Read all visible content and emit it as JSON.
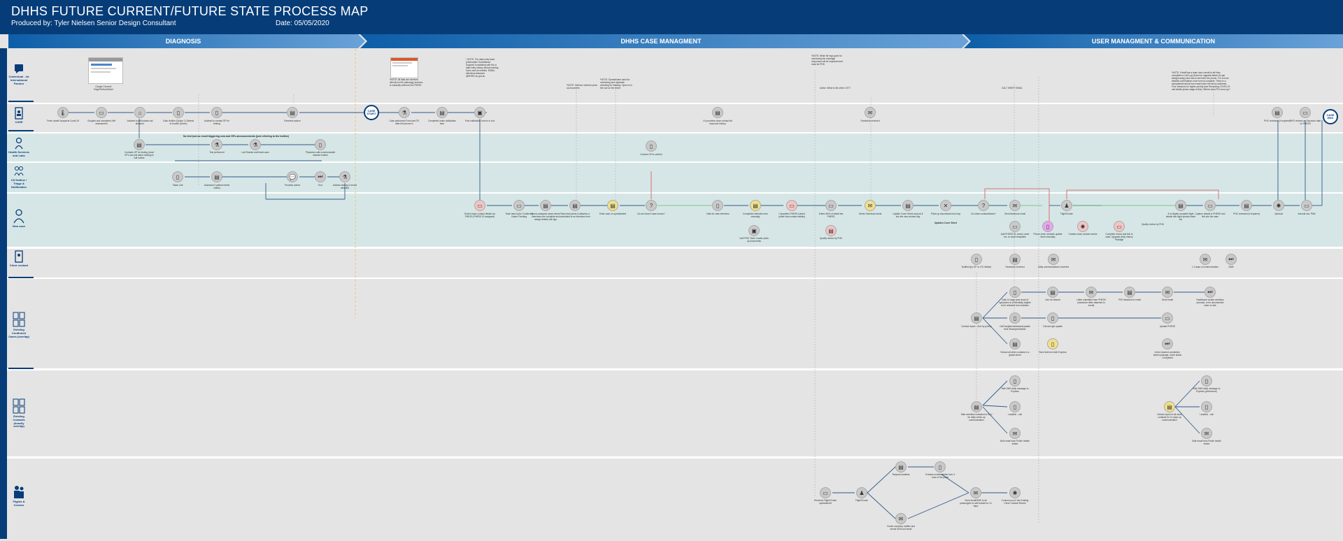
{
  "header": {
    "title": "DHHS FUTURE CURRENT/FUTURE STATE PROCESS MAP",
    "produced_by": "Produced by: Tyler Nielsen Senior Design Consultant",
    "date": "Date: 05/05/2020"
  },
  "phases": [
    "DIAGNOSIS",
    "DHHS CASE MANAGMENT",
    "USER MANAGMENT & COMMUNICATION"
  ],
  "lanes": {
    "intl": "Contextual - int International Factors",
    "case": "CASE",
    "health": "Health Services and Labs",
    "cs": "CS Hotline / Triage & Notification",
    "newcase": "New case",
    "close": "Close contact",
    "existing_confirmed": "Existing Confirmed Cases (overlap)",
    "existing_contacts": "Existing Contacts (heavily overlap)",
    "flights": "Flights & Cruises"
  },
  "notes": {
    "google": "Google Chrome/ Edge/Firefox/Safari",
    "phess_note": "*NOTE: All data are received directly for the pathology services is manually entered into PHESS",
    "data_entry": "* NOTE: The data entry team (Information Surveillance Support) is assisting with his or data entry during normal working hours and as needed. EMAIL: infectious.diseases @DHHS.vic.gov.au",
    "call_team": "*NOTE: Call two member picks up document",
    "spreadsheet": "*NOTE: Spreadsheet used for monitoring and duplicate checking for tracking. Open to in the row on the sheet",
    "when_fill": "*NOTE: When fill ergo goes for monitoring the message responses will be important and must be PHD",
    "active": "Active: What is the other LIST?",
    "cct": "CALT SHEET EMAIL",
    "right": "*NOTE: If staff has a team has a email to tell they completes a Call Log (Excel for upgrade failure (to get straight away) and how to tell them the phone. For a more detailed confirmation once form is complete, There is a spreadsheet about how email when the list is confirmed. Fore Sessions for higher priority (see Recording COVID-19 call details phase stage at this). Where does PHI occur go?",
    "no_test": "No test (not as result triggering now and GPs announcements (just referring to the hotline)"
  },
  "circles": {
    "case_start": "CASE START",
    "case_end": "CASE END"
  },
  "nodes": {
    "c1": "Feels unwell /suspects Covid-19",
    "c2": "Googles and completes Self assessment",
    "c3": "Advised to self-isolate call ahead to",
    "c4": "Calls Hotline (Option 1) Selects to trouble (Driver)",
    "c5": "Advised to contact GP for testing",
    "c6": "Receives advice",
    "c7": "Case performed Form last GP, after first phone in",
    "c8": "Completes Index notification form",
    "c9": "Post notification form is in box",
    "c10": "Go provides close contact list exposure history",
    "c11": "Facebook received",
    "c12": "PHO reviewed (if required)",
    "c13": "PHO reviews as Exposure date on PHESS",
    "h1": "Contacts GP for testing (most GP's are just stand reading to call hotline",
    "h2": "Test performed",
    "h3": "Lab Results confirmed case",
    "h4": "Physician calls communicable disease hotline",
    "s1": "Takes Call",
    "s2": "Assesses if patient meets criteria",
    "s3": "Provides advice",
    "s4": "End",
    "s5": "Advises testing & record intended",
    "s6": "Contact GP to confirm",
    "n1": "Enters basic contact details via PHESS (PHESS ID assigned)",
    "n2": "Team lead looks 'Confirmed Cases' Pending",
    "n3": "Opens assigned cases where interviews are complete and assign details call logs",
    "n4": "Team lead prints & attaches a worksheet to an interview form",
    "n5": "Enter case on spreadsheet",
    "n6": "Do we know if case known?",
    "n7": "Calls for case interview",
    "n8": "Call PHO/ Team Leader picks up documents",
    "n9": "Completes interview form manually",
    "n10": "Completes PHESS submit (other than contact details)",
    "n11": "Enters 80% of detail into PHESS",
    "n12": "Quality review by PHD",
    "n13": "Sends Facebook email",
    "n14": "Update Cover Sheet and put it into the new contact tray",
    "n15": "Picks up documents from tray",
    "n15b": "Updates Cover Sheet",
    "n16": "Do close contact/aisess?",
    "n17": "Send facebook email",
    "n18": "Add PHESS ID, email, name etc. to excel templates",
    "n19": "Phone close contacts update them manually",
    "n20": "Flight/Cruise",
    "n21": "Creates close contact events",
    "n22": "Complete record and link to case. Upgrade (this) history Package",
    "n23": "Quality review by PHD",
    "n24": "If no flights complete flight details into flight spread sheet etc",
    "n25": "Capture details in PHESS and link into the case",
    "n26": "PHO reviewed (if required)",
    "n27": "Optional",
    "n28": "Internal nav. PAM",
    "k1": "Notified (by GP or CS Hotline)",
    "k2": "Facebook received",
    "k3": "Daily communications received",
    "k4": "1 4 days of communication",
    "k5": "DWA",
    "e1": "Contact report - Sort by priority",
    "e2": "Calls 14 days post onset of symptoms to (Potentially eligible to be released from isolation",
    "e3": "Can be cleared",
    "e4": "Letter submitted from PHESS (clearance letter attached to email)",
    "e5": "PDF attached to email",
    "e6": "Send email",
    "e7": "Healthcare worker workflow prompts, to be documented clear on site",
    "e8": "Call hospital addresses/update their Sharepoint/folder",
    "e9": "Call and get update",
    "e10": "Update PHESS",
    "e11": "Extract all other contacts in a global sheet",
    "e12": "Send bulk text with Express",
    "e13": "A few reached completed, admin package, down status Completed",
    "x1": "Start workflow extracted to DLU for daily check-up communication",
    "x2": "Bulk SMS daily message to Express",
    "x3": "Landline - call",
    "x4": "Bulk email from Public Health Intake",
    "x5": "Extract report of all close contacts for 14 days up communication",
    "x6": "Bulk SMS daily message to Express (preference)",
    "x7": "Landline - call",
    "x8": "Bulk email from Public health Intake",
    "f1": "Receives Flight/Cruise spreadsheet",
    "f2": "Flight/Cruise",
    "f3": "Request manifest",
    "f4": "Extracts mobile details from 3 rows of the plane",
    "f5": "Cruise company notifies and sends Send out email",
    "f6": "Send email/SMS to all passengers to self-isolate for 14 days",
    "f7": "Connect you in the Existing Close Contact Stream"
  },
  "colors": {
    "navy": "#063d79",
    "lane_teal": "#d6e6e6",
    "lane_grey": "#e4e4e4",
    "arrow": "#2e5a8c",
    "red": "#e05050",
    "green": "#4caf50",
    "yellow": "#f1e08a",
    "purple": "#e6a6ec"
  }
}
